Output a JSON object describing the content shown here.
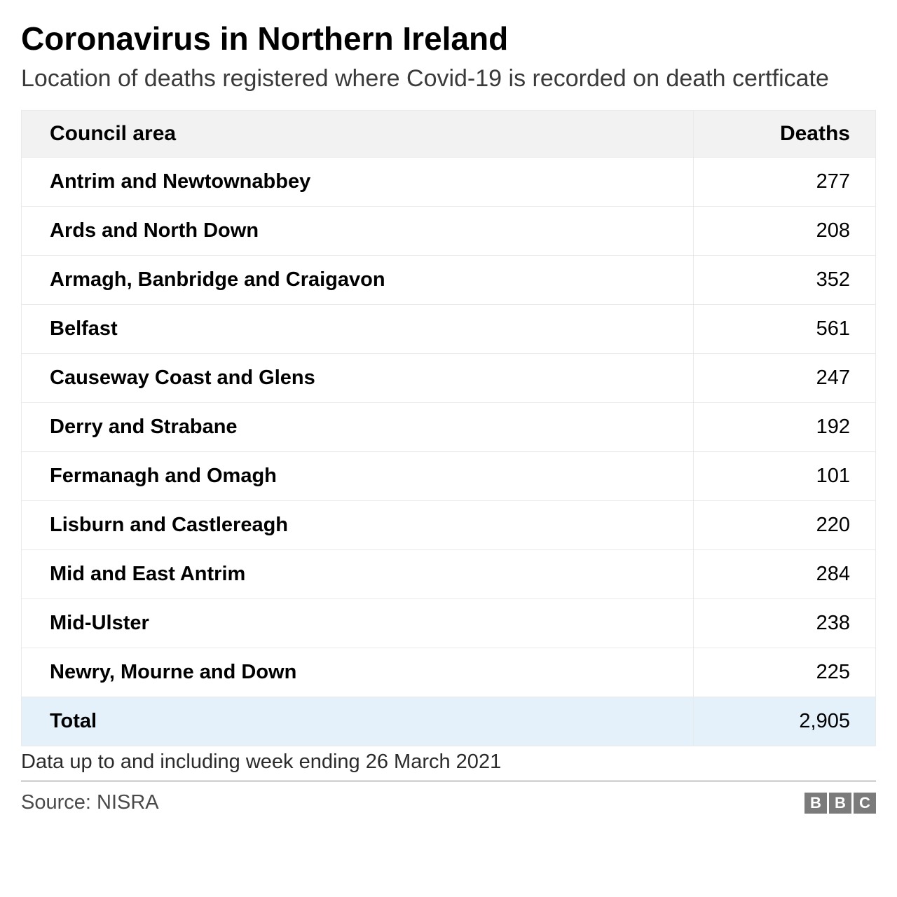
{
  "title": "Coronavirus in Northern Ireland",
  "subtitle": "Location of deaths registered where Covid-19 is recorded on death certficate",
  "table": {
    "type": "table",
    "columns": [
      "Council area",
      "Deaths"
    ],
    "column_align": [
      "left",
      "right"
    ],
    "header_bg": "#f2f2f2",
    "border_color": "#eaeaea",
    "rows": [
      {
        "area": "Antrim and Newtownabbey",
        "deaths": "277"
      },
      {
        "area": "Ards and North Down",
        "deaths": "208"
      },
      {
        "area": "Armagh, Banbridge and Craigavon",
        "deaths": "352"
      },
      {
        "area": "Belfast",
        "deaths": "561"
      },
      {
        "area": "Causeway Coast and Glens",
        "deaths": "247"
      },
      {
        "area": "Derry and Strabane",
        "deaths": "192"
      },
      {
        "area": "Fermanagh and Omagh",
        "deaths": "101"
      },
      {
        "area": "Lisburn and Castlereagh",
        "deaths": "220"
      },
      {
        "area": "Mid and East Antrim",
        "deaths": "284"
      },
      {
        "area": "Mid-Ulster",
        "deaths": "238"
      },
      {
        "area": "Newry, Mourne and Down",
        "deaths": "225"
      }
    ],
    "total": {
      "area": "Total",
      "deaths": "2,905"
    },
    "total_row_bg": "#e4f1fb",
    "area_fontweight": 700,
    "deaths_fontweight": 400,
    "header_fontsize": 30,
    "cell_fontsize": 29
  },
  "footnote": "Data up to and including week ending 26 March 2021",
  "source": "Source: NISRA",
  "logo": {
    "letters": [
      "B",
      "B",
      "C"
    ],
    "box_bg": "#7b7b7b",
    "box_fg": "#ffffff"
  },
  "colors": {
    "background": "#ffffff",
    "text": "#000000",
    "subtitle": "#3a3a3a",
    "source": "#4a4a4a",
    "divider": "#7a7a7a"
  },
  "typography": {
    "title_fontsize": 46,
    "subtitle_fontsize": 34,
    "footnote_fontsize": 29,
    "source_fontsize": 29
  }
}
